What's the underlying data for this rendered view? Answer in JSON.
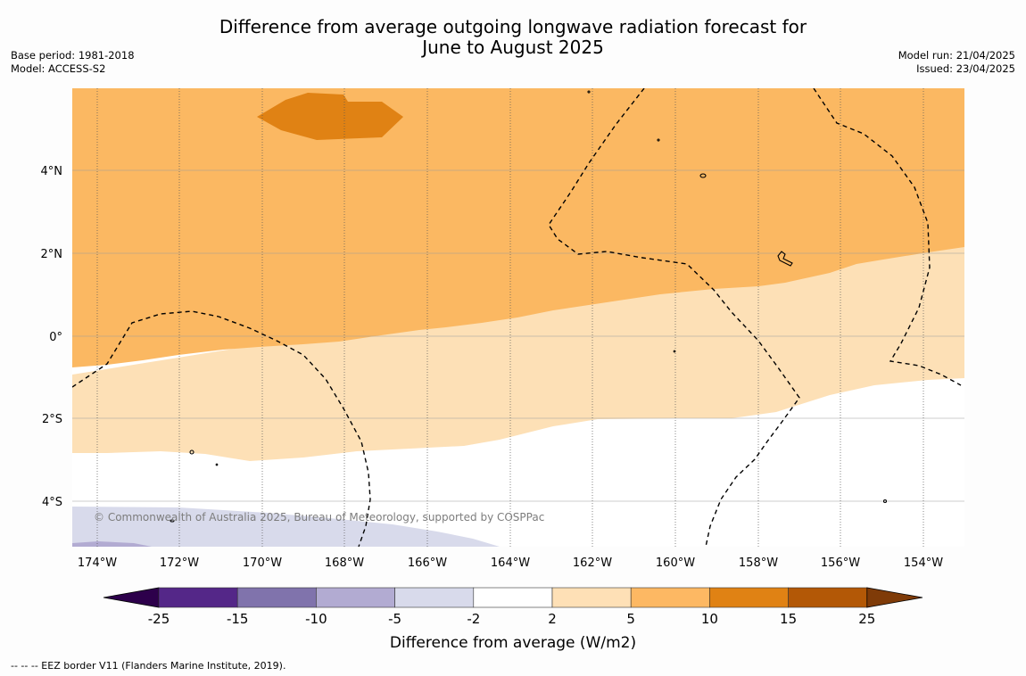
{
  "title_line1": "Difference from average outgoing longwave radiation forecast for",
  "title_line2": "June to August 2025",
  "base_period": "Base period: 1981-2018",
  "model": "Model: ACCESS-S2",
  "model_run": "Model run: 21/04/2025",
  "issued": "Issued: 23/04/2025",
  "copyright": "© Commonwealth of Australia 2025, Bureau of Meteorology, supported by COSPPac",
  "footnote": "--  --  -- EEZ border V11 (Flanders Marine Institute, 2019).",
  "map": {
    "lon_ticks": [
      "174°W",
      "172°W",
      "170°W",
      "168°W",
      "166°W",
      "164°W",
      "162°W",
      "160°W",
      "158°W",
      "156°W",
      "154°W"
    ],
    "lat_ticks": [
      "4°N",
      "2°N",
      "0°",
      "2°S",
      "4°S"
    ],
    "lon_range": [
      "174.6°W",
      "153.0°W"
    ],
    "lat_range": [
      "5.2°S",
      "6.0°N"
    ],
    "zones": [
      {
        "range": "10 to 15 W/m2",
        "color": "#e08214"
      },
      {
        "range": "5 to 10 W/m2",
        "color": "#fbb862"
      },
      {
        "range": "2 to 5 W/m2",
        "color": "#fde0b6"
      },
      {
        "range": "-2 to 2 W/m2",
        "color": "#ffffff"
      },
      {
        "range": "-5 to -2 W/m2",
        "color": "#d8daeb"
      }
    ]
  },
  "colorbar": {
    "label": "Difference from average (W/m2)",
    "ticks": [
      "-25",
      "-15",
      "-10",
      "-5",
      "-2",
      "2",
      "5",
      "10",
      "15",
      "25"
    ],
    "colors": [
      "#542788",
      "#8073ac",
      "#b2abd2",
      "#d8daeb",
      "#ffffff",
      "#fee0b6",
      "#fdb863",
      "#e08214",
      "#b35806"
    ],
    "under_color": "#2d004b",
    "over_color": "#7f3b08"
  }
}
